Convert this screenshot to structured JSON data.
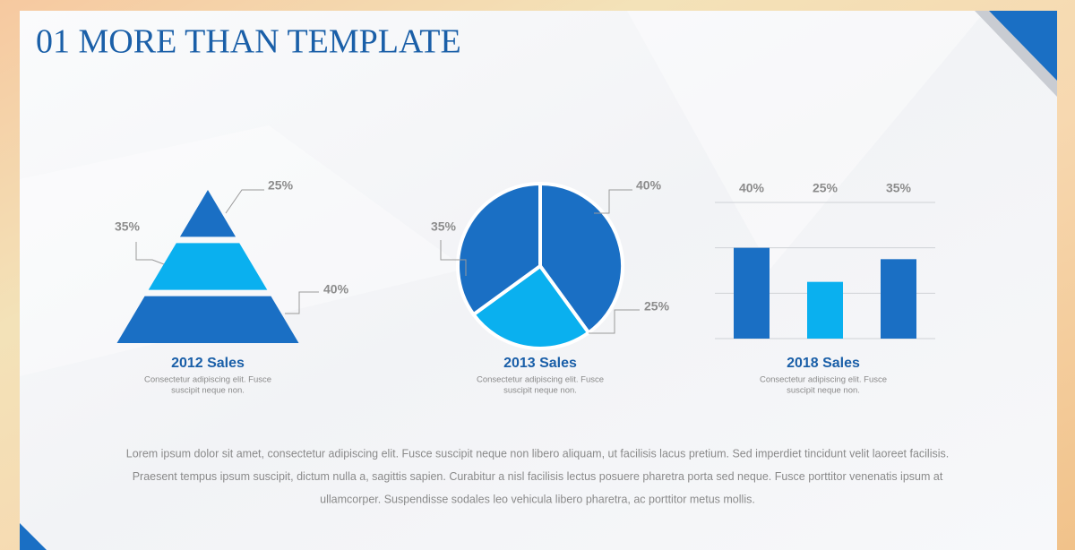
{
  "title": "01 MORE THAN TEMPLATE",
  "body": [
    "Lorem ipsum dolor sit amet, consectetur adipiscing elit. Fusce suscipit neque non libero aliquam, ut facilisis lacus pretium. Sed imperdiet tincidunt velit laoreet facilisis.",
    "Praesent tempus ipsum suscipit, dictum nulla a, sagittis sapien. Curabitur a nisl facilisis lectus posuere pharetra porta sed neque. Fusce porttitor venenatis ipsum at",
    "ullamcorper. Suspendisse sodales leo vehicula libero pharetra, ac porttitor metus mollis."
  ],
  "chart_data": [
    {
      "type": "pyramid",
      "title": "2012 Sales",
      "caption": [
        "Consectetur adipiscing elit. Fusce",
        "suscipit neque non."
      ],
      "values": [
        25,
        35,
        40
      ],
      "value_labels": [
        "25%",
        "35%",
        "40%"
      ],
      "colors": [
        "#1a6fc4",
        "#0ab0ef",
        "#1a6fc4"
      ]
    },
    {
      "type": "pie",
      "title": "2013 Sales",
      "caption": [
        "Consectetur adipiscing elit. Fusce",
        "suscipit neque non."
      ],
      "values": [
        40,
        25,
        35
      ],
      "value_labels": [
        "40%",
        "25%",
        "35%"
      ],
      "colors": [
        "#1a6fc4",
        "#0ab0ef",
        "#1a6fc4"
      ]
    },
    {
      "type": "bar",
      "title": "2018 Sales",
      "caption": [
        "Consectetur adipiscing elit. Fusce",
        "suscipit neque non."
      ],
      "categories": [
        null,
        null,
        null
      ],
      "values": [
        40,
        25,
        35
      ],
      "value_labels": [
        "40%",
        "25%",
        "35%"
      ],
      "colors": [
        "#1a6fc4",
        "#0ab0ef",
        "#1a6fc4"
      ],
      "ylim": [
        0,
        60
      ],
      "yticks": [
        0,
        20,
        40,
        60
      ],
      "grid": true
    }
  ]
}
